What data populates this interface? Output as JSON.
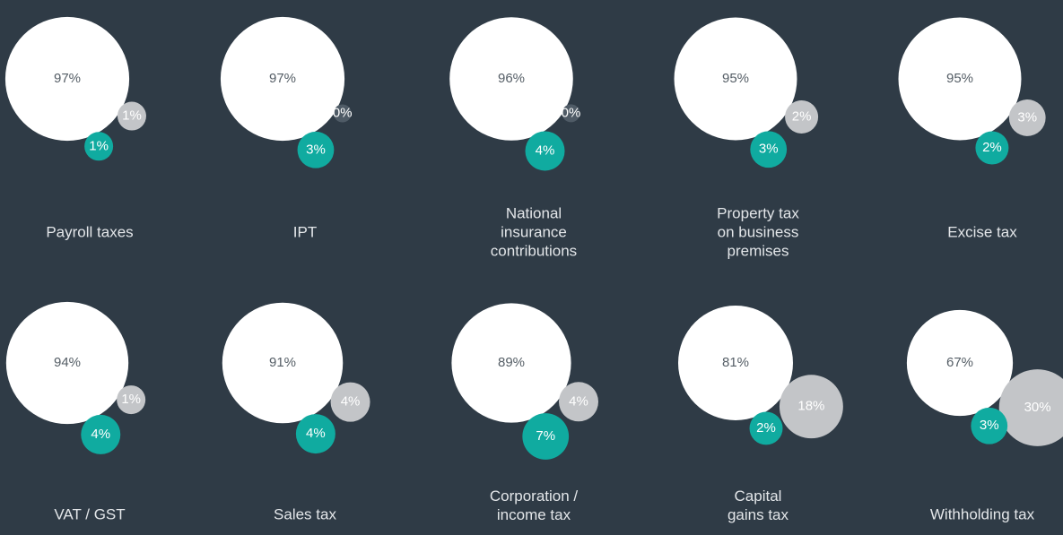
{
  "chart_data": [
    {
      "type": "bubble",
      "title": [
        "Payroll taxes"
      ],
      "values": [
        97,
        1,
        1
      ],
      "value_labels": [
        "97%",
        "1%",
        "1%"
      ],
      "colors": [
        "#ffffff",
        "#c3c5c8",
        "#10aba0"
      ]
    },
    {
      "type": "bubble",
      "title": [
        "IPT"
      ],
      "values": [
        97,
        0,
        3
      ],
      "value_labels": [
        "97%",
        "0%",
        "3%"
      ],
      "colors": [
        "#ffffff",
        "#4f5b66",
        "#10aba0"
      ]
    },
    {
      "type": "bubble",
      "title": [
        "National",
        "insurance",
        "contributions"
      ],
      "values": [
        96,
        0,
        4
      ],
      "value_labels": [
        "96%",
        "0%",
        "4%"
      ],
      "colors": [
        "#ffffff",
        "#4f5b66",
        "#10aba0"
      ]
    },
    {
      "type": "bubble",
      "title": [
        "Property tax",
        "on business",
        "premises"
      ],
      "values": [
        95,
        2,
        3
      ],
      "value_labels": [
        "95%",
        "2%",
        "3%"
      ],
      "colors": [
        "#ffffff",
        "#c3c5c8",
        "#10aba0"
      ]
    },
    {
      "type": "bubble",
      "title": [
        "Excise tax"
      ],
      "values": [
        95,
        3,
        2
      ],
      "value_labels": [
        "95%",
        "3%",
        "2%"
      ],
      "colors": [
        "#ffffff",
        "#c3c5c8",
        "#10aba0"
      ]
    },
    {
      "type": "bubble",
      "title": [
        "VAT / GST"
      ],
      "values": [
        94,
        1,
        4
      ],
      "value_labels": [
        "94%",
        "1%",
        "4%"
      ],
      "colors": [
        "#ffffff",
        "#c3c5c8",
        "#10aba0"
      ]
    },
    {
      "type": "bubble",
      "title": [
        "Sales tax"
      ],
      "values": [
        91,
        4,
        4
      ],
      "value_labels": [
        "91%",
        "4%",
        "4%"
      ],
      "colors": [
        "#ffffff",
        "#c3c5c8",
        "#10aba0"
      ]
    },
    {
      "type": "bubble",
      "title": [
        "Corporation /",
        "income tax"
      ],
      "values": [
        89,
        4,
        7
      ],
      "value_labels": [
        "89%",
        "4%",
        "7%"
      ],
      "colors": [
        "#ffffff",
        "#c3c5c8",
        "#10aba0"
      ]
    },
    {
      "type": "bubble",
      "title": [
        "Capital",
        "gains tax"
      ],
      "values": [
        81,
        18,
        2
      ],
      "value_labels": [
        "81%",
        "18%",
        "2%"
      ],
      "colors": [
        "#ffffff",
        "#c3c5c8",
        "#10aba0"
      ]
    },
    {
      "type": "bubble",
      "title": [
        "Withholding tax"
      ],
      "values": [
        67,
        30,
        3
      ],
      "value_labels": [
        "67%",
        "30%",
        "3%"
      ],
      "colors": [
        "#ffffff",
        "#c3c5c8",
        "#10aba0"
      ]
    }
  ]
}
